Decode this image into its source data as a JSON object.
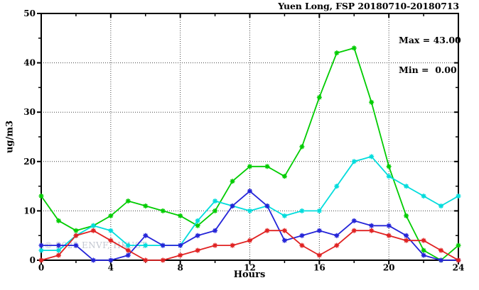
{
  "title": "Yuen Long, FSP 20180710-20180713",
  "annotation": {
    "max_label": "Max = 43.00",
    "min_label": "Min =  0.00"
  },
  "watermark": "© 2025 ENVF, HKUST",
  "chart_data": {
    "type": "line",
    "title": "Yuen Long, FSP 20180710-20180713",
    "xlabel": "Hours",
    "ylabel": "ug/m3",
    "xlim": [
      0,
      24
    ],
    "ylim": [
      0,
      50
    ],
    "x_major_ticks": [
      0,
      4,
      8,
      12,
      16,
      20,
      24
    ],
    "x_minor_step": 2,
    "y_major_ticks": [
      0,
      10,
      20,
      30,
      40,
      50
    ],
    "y_minor_step": 5,
    "grid": "dotted lines at major ticks, boxed frame",
    "legend_position": "none",
    "marker": "asterisk",
    "max": 43.0,
    "min": 0.0,
    "x": [
      0,
      1,
      2,
      3,
      4,
      5,
      6,
      7,
      8,
      9,
      10,
      11,
      12,
      13,
      14,
      15,
      16,
      17,
      18,
      19,
      20,
      21,
      22,
      23,
      24
    ],
    "series": [
      {
        "name": "green",
        "color": "#00cc00",
        "values": [
          13,
          8,
          6,
          7,
          9,
          12,
          11,
          10,
          9,
          7,
          10,
          16,
          19,
          19,
          17,
          23,
          33,
          42,
          43,
          32,
          19,
          9,
          2,
          0,
          3
        ]
      },
      {
        "name": "cyan",
        "color": "#00dcdc",
        "values": [
          2,
          2,
          5,
          7,
          6,
          3,
          3,
          3,
          3,
          8,
          12,
          11,
          10,
          11,
          9,
          10,
          10,
          15,
          20,
          21,
          17,
          15,
          13,
          11,
          13
        ]
      },
      {
        "name": "blue",
        "color": "#2424d8",
        "values": [
          3,
          3,
          3,
          0,
          0,
          1,
          5,
          3,
          3,
          5,
          6,
          11,
          14,
          11,
          4,
          5,
          6,
          5,
          8,
          7,
          7,
          5,
          1,
          0,
          0
        ]
      },
      {
        "name": "red",
        "color": "#e02222",
        "values": [
          0,
          1,
          5,
          6,
          4,
          2,
          0,
          0,
          1,
          2,
          3,
          3,
          4,
          6,
          6,
          3,
          1,
          3,
          6,
          6,
          5,
          4,
          4,
          2,
          0
        ]
      }
    ]
  }
}
